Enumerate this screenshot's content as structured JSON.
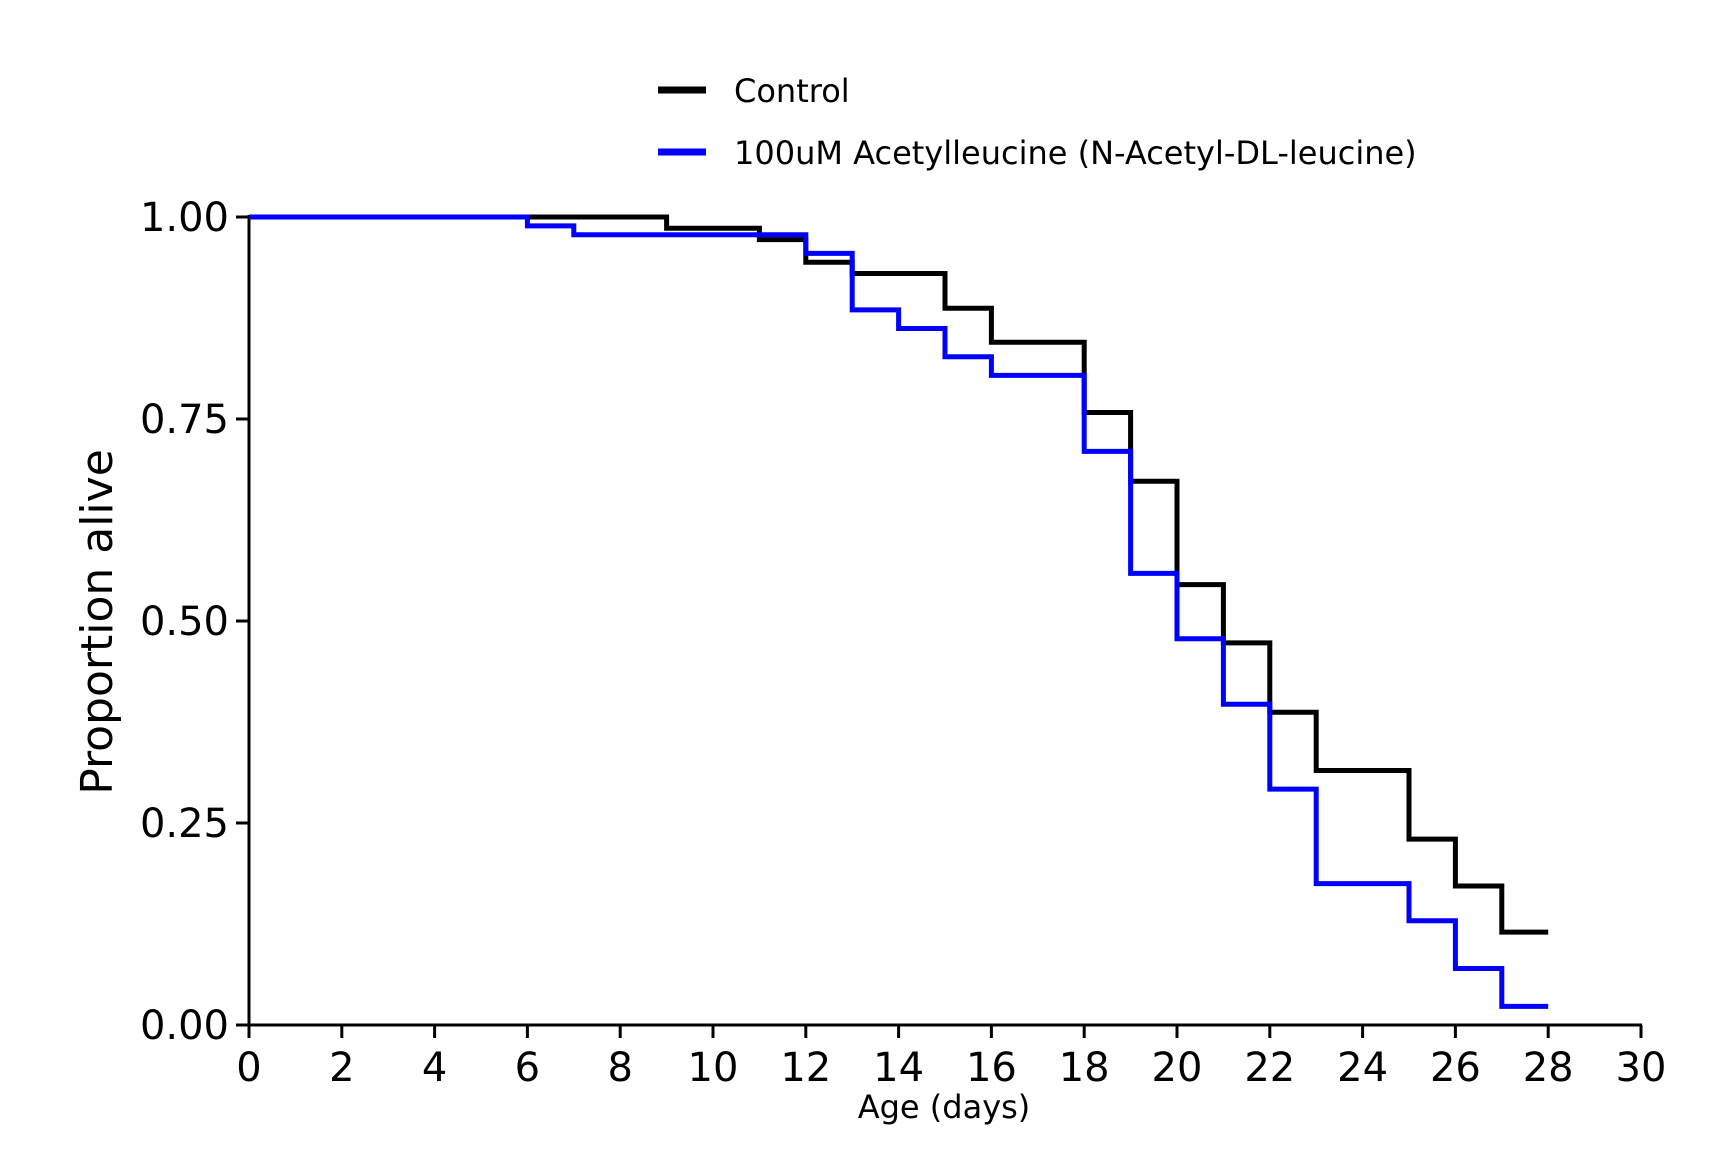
{
  "chart_data": {
    "type": "line",
    "subtype": "step",
    "title": "",
    "xlabel": "Age (days)",
    "ylabel": "Proportion alive",
    "xlim": [
      0,
      30
    ],
    "ylim": [
      0,
      1
    ],
    "x_ticks": [
      "0",
      "2",
      "4",
      "6",
      "8",
      "10",
      "12",
      "14",
      "16",
      "18",
      "20",
      "22",
      "24",
      "26",
      "28",
      "30"
    ],
    "y_ticks": [
      "0.00",
      "0.25",
      "0.50",
      "0.75",
      "1.00"
    ],
    "grid": false,
    "legend_position": "top-center",
    "series": [
      {
        "name": "Control",
        "color": "#000000",
        "x": [
          0,
          9,
          11,
          12,
          13,
          15,
          16,
          18,
          19,
          20,
          21,
          22,
          23,
          25,
          26,
          27,
          28
        ],
        "y": [
          1.0,
          0.986,
          0.972,
          0.944,
          0.93,
          0.887,
          0.845,
          0.758,
          0.673,
          0.545,
          0.473,
          0.387,
          0.315,
          0.23,
          0.172,
          0.115,
          0.115
        ]
      },
      {
        "name": "100uM Acetylleucine (N-Acetyl-DL-leucine)",
        "color": "#0000ff",
        "x": [
          0,
          6,
          7,
          12,
          13,
          14,
          15,
          16,
          18,
          19,
          20,
          21,
          22,
          23,
          25,
          26,
          27,
          28
        ],
        "y": [
          1.0,
          0.989,
          0.978,
          0.955,
          0.885,
          0.862,
          0.827,
          0.804,
          0.71,
          0.559,
          0.478,
          0.397,
          0.292,
          0.175,
          0.129,
          0.07,
          0.023,
          0.023
        ]
      }
    ]
  }
}
